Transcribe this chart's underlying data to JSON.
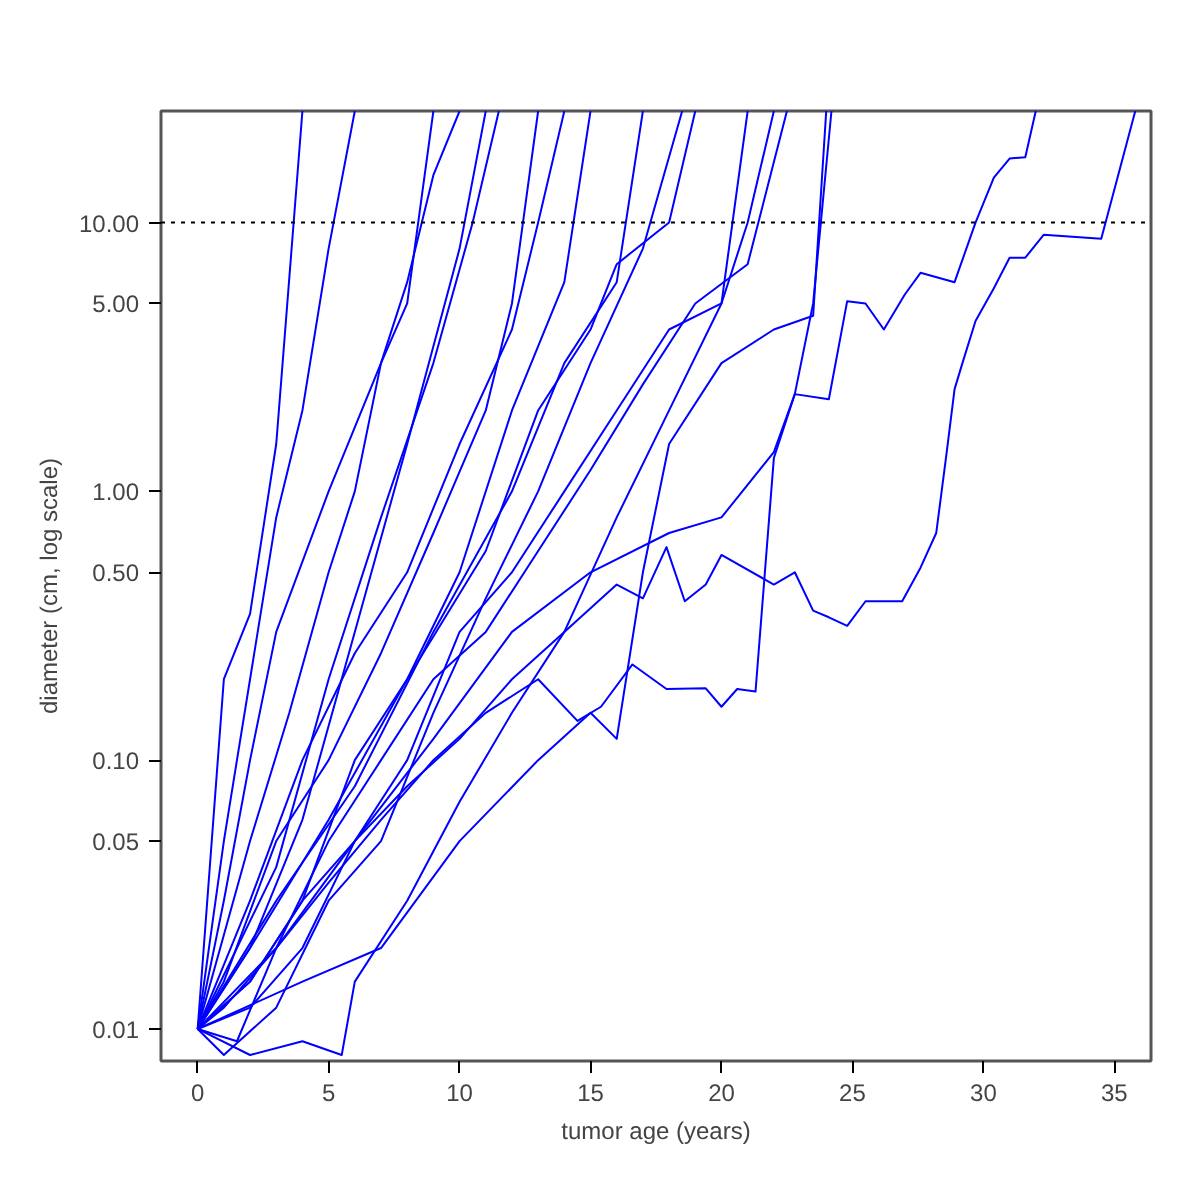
{
  "chart_data": {
    "type": "line",
    "xlabel": "tumor age (years)",
    "ylabel": "diameter (cm, log scale)",
    "log": "y",
    "grid": false,
    "xlim": [
      -1.4,
      36.4
    ],
    "ylim": [
      0.0076,
      26
    ],
    "xticks": [
      0,
      5,
      10,
      15,
      20,
      25,
      30,
      35
    ],
    "yticks": [
      {
        "value": 0.01,
        "label": "0.01"
      },
      {
        "value": 0.05,
        "label": "0.05"
      },
      {
        "value": 0.1,
        "label": "0.10"
      },
      {
        "value": 0.5,
        "label": "0.50"
      },
      {
        "value": 1,
        "label": "1.00"
      },
      {
        "value": 5,
        "label": "5.00"
      },
      {
        "value": 10,
        "label": "10.00"
      }
    ],
    "ref_lines": [
      {
        "axis": "y",
        "value": 10,
        "label": null,
        "color": "#000000",
        "line_style": "dotted"
      }
    ],
    "series": [
      {
        "color": "#0000ff",
        "x": [
          0,
          1,
          3,
          5,
          7,
          9,
          11,
          13,
          14.5,
          15.4,
          16.6,
          17.9,
          19.4,
          20.0,
          20.6,
          21.3,
          22.0,
          22.8,
          23.5,
          24.2
        ],
        "values": [
          0.01,
          0.012,
          0.02,
          0.035,
          0.06,
          0.1,
          0.15,
          0.2,
          0.14,
          0.158,
          0.227,
          0.184,
          0.185,
          0.158,
          0.184,
          0.18,
          1.33,
          2.3,
          5,
          26
        ]
      },
      {
        "color": "#0000ff",
        "x": [
          0,
          2,
          4,
          6,
          8,
          10,
          12,
          14,
          16,
          17,
          17.9,
          18.6,
          19.4,
          20.0,
          22.0,
          22.8,
          23.5,
          24.1,
          24.8,
          25.5,
          26.9,
          27.6,
          28.2,
          28.6,
          28.9,
          29.2,
          29.7,
          30.4,
          31.0,
          31.6,
          32.3,
          34.5,
          35.8
        ],
        "values": [
          0.01,
          0.015,
          0.03,
          0.05,
          0.08,
          0.12,
          0.2,
          0.3,
          0.45,
          0.4,
          0.62,
          0.39,
          0.45,
          0.58,
          0.45,
          0.5,
          0.36,
          0.34,
          0.316,
          0.39,
          0.39,
          0.52,
          0.7,
          1.4,
          2.4,
          3,
          4.3,
          5.7,
          7.4,
          7.4,
          9,
          8.7,
          26
        ]
      },
      {
        "color": "#0000ff",
        "x": [
          0,
          3,
          6,
          9,
          12,
          15,
          18,
          20,
          22,
          22.8,
          24.1,
          24.8,
          25.5,
          26.2,
          27.0,
          27.6,
          28.9,
          29.7,
          30.4,
          31.0,
          31.6,
          32.0
        ],
        "values": [
          0.01,
          0.02,
          0.05,
          0.12,
          0.3,
          0.5,
          0.7,
          0.8,
          1.4,
          2.3,
          2.2,
          5.1,
          5,
          4,
          5.4,
          6.5,
          6,
          10,
          14.7,
          17.3,
          17.5,
          26
        ]
      },
      {
        "color": "#0000ff",
        "x": [
          0,
          1,
          2,
          3,
          4
        ],
        "values": [
          0.01,
          0.2,
          0.35,
          1.5,
          26
        ]
      },
      {
        "color": "#0000ff",
        "x": [
          0,
          1,
          2,
          3,
          4,
          5,
          6
        ],
        "values": [
          0.01,
          0.05,
          0.2,
          0.8,
          2,
          8,
          26
        ]
      },
      {
        "color": "#0000ff",
        "x": [
          0,
          2,
          4,
          6,
          8,
          10,
          11
        ],
        "values": [
          0.01,
          0.02,
          0.06,
          0.3,
          1.5,
          8,
          26
        ]
      },
      {
        "color": "#0000ff",
        "x": [
          0,
          2,
          4,
          6,
          8,
          10,
          12,
          14,
          15
        ],
        "values": [
          0.01,
          0.015,
          0.03,
          0.1,
          0.2,
          0.5,
          2,
          6,
          26
        ]
      },
      {
        "color": "#0000ff",
        "x": [
          0,
          1,
          3,
          5,
          7,
          9,
          11,
          13,
          15,
          17,
          18.5
        ],
        "values": [
          0.01,
          0.008,
          0.012,
          0.03,
          0.05,
          0.15,
          0.4,
          1,
          3,
          8,
          26
        ]
      },
      {
        "color": "#0000ff",
        "x": [
          0,
          2,
          4,
          6,
          8,
          10,
          12,
          13,
          14
        ],
        "values": [
          0.01,
          0.03,
          0.1,
          0.25,
          0.5,
          1.5,
          4,
          10,
          26
        ]
      },
      {
        "color": "#0000ff",
        "x": [
          0,
          1.5,
          3,
          5,
          7,
          9,
          11,
          13,
          15,
          17,
          19,
          21,
          22.5
        ],
        "values": [
          0.01,
          0.009,
          0.02,
          0.05,
          0.1,
          0.2,
          0.3,
          0.6,
          1.2,
          2.5,
          5,
          7,
          26
        ]
      },
      {
        "color": "#0000ff",
        "x": [
          0,
          3,
          5,
          7,
          9,
          10.5,
          11.5
        ],
        "values": [
          0.01,
          0.04,
          0.2,
          0.8,
          3,
          10,
          26
        ]
      },
      {
        "color": "#0000ff",
        "x": [
          0,
          2,
          3.5,
          5,
          6,
          7,
          8,
          9
        ],
        "values": [
          0.01,
          0.05,
          0.15,
          0.5,
          1,
          3,
          5,
          26
        ]
      },
      {
        "color": "#0000ff",
        "x": [
          0,
          2,
          4,
          6,
          8,
          10,
          12,
          14,
          16,
          18,
          20,
          21,
          22
        ],
        "values": [
          0.01,
          0.012,
          0.02,
          0.05,
          0.1,
          0.3,
          0.5,
          1,
          2,
          4,
          5,
          10,
          26
        ]
      },
      {
        "color": "#0000ff",
        "x": [
          0,
          2,
          4,
          5.5,
          6,
          8,
          10,
          12,
          14,
          16,
          18,
          20,
          21
        ],
        "values": [
          0.01,
          0.008,
          0.009,
          0.008,
          0.015,
          0.03,
          0.07,
          0.15,
          0.3,
          0.8,
          2,
          5,
          26
        ]
      },
      {
        "color": "#0000ff",
        "x": [
          0,
          1,
          2,
          3,
          5,
          7,
          8,
          9,
          10
        ],
        "values": [
          0.01,
          0.03,
          0.1,
          0.3,
          1,
          3,
          6,
          15,
          26
        ]
      },
      {
        "color": "#0000ff",
        "x": [
          0,
          3,
          6,
          9,
          12,
          14,
          16,
          17
        ],
        "values": [
          0.01,
          0.03,
          0.08,
          0.3,
          1,
          3,
          6,
          26
        ]
      },
      {
        "color": "#0000ff",
        "x": [
          0,
          2,
          5,
          8,
          11,
          13,
          15,
          16,
          18,
          19
        ],
        "values": [
          0.01,
          0.02,
          0.06,
          0.2,
          0.6,
          2,
          4,
          7,
          10,
          26
        ]
      },
      {
        "color": "#0000ff",
        "x": [
          0,
          1,
          3,
          5,
          7,
          9,
          11,
          12,
          13
        ],
        "values": [
          0.01,
          0.015,
          0.05,
          0.1,
          0.25,
          0.7,
          2,
          5,
          26
        ]
      },
      {
        "color": "#0000ff",
        "x": [
          0,
          4,
          7,
          10,
          13,
          15,
          16,
          17,
          18,
          20,
          22,
          23.5,
          24
        ],
        "values": [
          0.01,
          0.015,
          0.02,
          0.05,
          0.1,
          0.15,
          0.12,
          0.5,
          1.5,
          3,
          4,
          4.5,
          26
        ]
      }
    ]
  }
}
